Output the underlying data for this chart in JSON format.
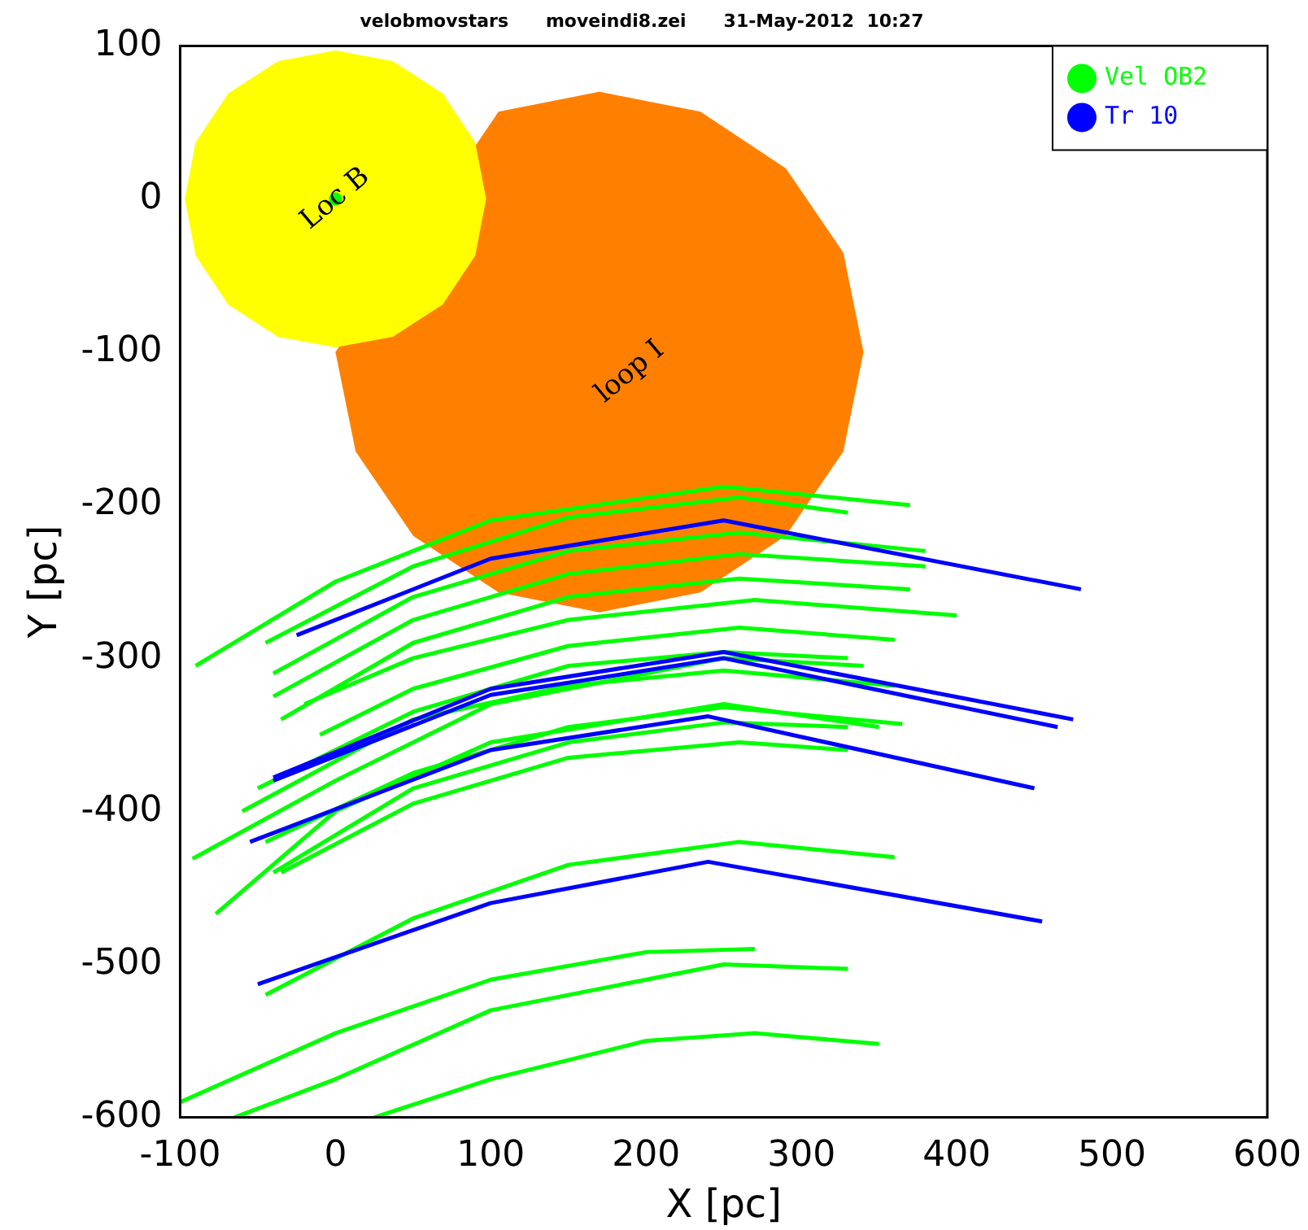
{
  "chart_data": {
    "type": "line",
    "title": "velobmovstars      moveindi8.zei      31-May-2012  10:27",
    "xlabel": "X [pc]",
    "ylabel": "Y [pc]",
    "xlim": [
      -100,
      600
    ],
    "xticks": [
      -100,
      0,
      100,
      200,
      300,
      400,
      500,
      600
    ],
    "ylim": [
      -600,
      100
    ],
    "yticks": [
      -600,
      -500,
      -400,
      -300,
      -200,
      -100,
      0,
      100
    ],
    "grid": false,
    "legend": "top right",
    "marker": "none",
    "series": [
      {
        "type": "area",
        "name": "loop I",
        "color": "#ff8000",
        "x": [
          340,
          327,
          290,
          235,
          170,
          105,
          0,
          13,
          50,
          105,
          170,
          235,
          290,
          327
        ],
        "values": [
          -100,
          -35,
          20,
          57,
          70,
          57,
          -100,
          -165,
          -220,
          -257,
          -270,
          -257,
          -220,
          -165
        ]
      },
      {
        "type": "area",
        "name": "Loc B",
        "color": "#ffff00",
        "x": [
          97,
          90,
          69,
          37,
          0,
          -37,
          -69,
          -90,
          -97,
          -90,
          -69,
          -37,
          0,
          37,
          69,
          90
        ],
        "values": [
          0,
          37,
          69,
          90,
          97,
          90,
          69,
          37,
          0,
          -37,
          -69,
          -90,
          -97,
          -90,
          -69,
          -37
        ]
      },
      {
        "type": "scatter",
        "marker": "circle",
        "color": "#00ff00",
        "x": [
          0
        ],
        "values": [
          0
        ]
      },
      {
        "name": "Vel OB2",
        "color": "#00ff00",
        "x": [
          -90,
          0,
          100,
          250,
          370
        ],
        "values": [
          -305,
          -250,
          -210,
          -188,
          -200
        ]
      },
      {
        "color": "#00ff00",
        "x": [
          -45,
          50,
          150,
          260,
          330
        ],
        "values": [
          -290,
          -240,
          -208,
          -195,
          -205
        ]
      },
      {
        "color": "#00ff00",
        "x": [
          -40,
          50,
          150,
          260,
          380
        ],
        "values": [
          -310,
          -260,
          -230,
          -218,
          -230
        ]
      },
      {
        "color": "#00ff00",
        "x": [
          -40,
          50,
          150,
          260,
          380
        ],
        "values": [
          -325,
          -275,
          -245,
          -232,
          -240
        ]
      },
      {
        "color": "#00ff00",
        "x": [
          -35,
          50,
          150,
          260,
          370
        ],
        "values": [
          -340,
          -290,
          -260,
          -248,
          -255
        ]
      },
      {
        "color": "#00ff00",
        "x": [
          -20,
          50,
          150,
          270,
          400
        ],
        "values": [
          -330,
          -300,
          -275,
          -262,
          -272
        ]
      },
      {
        "color": "#00ff00",
        "x": [
          -10,
          50,
          150,
          260,
          360
        ],
        "values": [
          -350,
          -320,
          -292,
          -280,
          -288
        ]
      },
      {
        "color": "#00ff00",
        "x": [
          -50,
          50,
          150,
          250,
          330
        ],
        "values": [
          -385,
          -335,
          -305,
          -296,
          -300
        ]
      },
      {
        "color": "#00ff00",
        "x": [
          -60,
          50,
          150,
          250,
          360
        ],
        "values": [
          -400,
          -340,
          -318,
          -308,
          -318
        ]
      },
      {
        "color": "#00ff00",
        "x": [
          -92,
          0,
          100,
          250,
          340
        ],
        "values": [
          -431,
          -380,
          -330,
          -300,
          -305
        ]
      },
      {
        "color": "#00ff00",
        "x": [
          -45,
          50,
          150,
          250,
          365
        ],
        "values": [
          -420,
          -375,
          -345,
          -332,
          -343
        ]
      },
      {
        "color": "#00ff00",
        "x": [
          -40,
          50,
          150,
          250,
          330
        ],
        "values": [
          -440,
          -385,
          -355,
          -342,
          -345
        ]
      },
      {
        "color": "#00ff00",
        "x": [
          -35,
          50,
          150,
          260,
          330
        ],
        "values": [
          -440,
          -395,
          -365,
          -355,
          -360
        ]
      },
      {
        "color": "#00ff00",
        "x": [
          -77,
          0,
          100,
          250,
          350
        ],
        "values": [
          -467,
          -400,
          -355,
          -330,
          -345
        ]
      },
      {
        "color": "#00ff00",
        "x": [
          -45,
          50,
          150,
          260,
          360
        ],
        "values": [
          -520,
          -470,
          -435,
          -420,
          -430
        ]
      },
      {
        "color": "#00ff00",
        "x": [
          -100,
          0,
          100,
          200,
          270
        ],
        "values": [
          -590,
          -545,
          -510,
          -492,
          -490
        ]
      },
      {
        "color": "#00ff00",
        "x": [
          -65,
          0,
          100,
          250,
          330
        ],
        "values": [
          -600,
          -575,
          -530,
          -500,
          -503
        ]
      },
      {
        "color": "#00ff00",
        "x": [
          25,
          100,
          200,
          270,
          350
        ],
        "values": [
          -600,
          -575,
          -550,
          -545,
          -552
        ]
      },
      {
        "name": "Tr 10",
        "color": "#0000ff",
        "x": [
          -25,
          100,
          250,
          480
        ],
        "values": [
          -285,
          -235,
          -210,
          -255
        ]
      },
      {
        "color": "#0000ff",
        "x": [
          -40,
          100,
          250,
          475
        ],
        "values": [
          -378,
          -320,
          -296,
          -340
        ]
      },
      {
        "color": "#0000ff",
        "x": [
          -40,
          100,
          250,
          465
        ],
        "values": [
          -380,
          -324,
          -300,
          -345
        ]
      },
      {
        "color": "#0000ff",
        "x": [
          -55,
          100,
          240,
          450
        ],
        "values": [
          -420,
          -360,
          -338,
          -385
        ]
      },
      {
        "color": "#0000ff",
        "x": [
          -50,
          100,
          240,
          455
        ],
        "values": [
          -513,
          -460,
          -433,
          -472
        ]
      }
    ]
  }
}
